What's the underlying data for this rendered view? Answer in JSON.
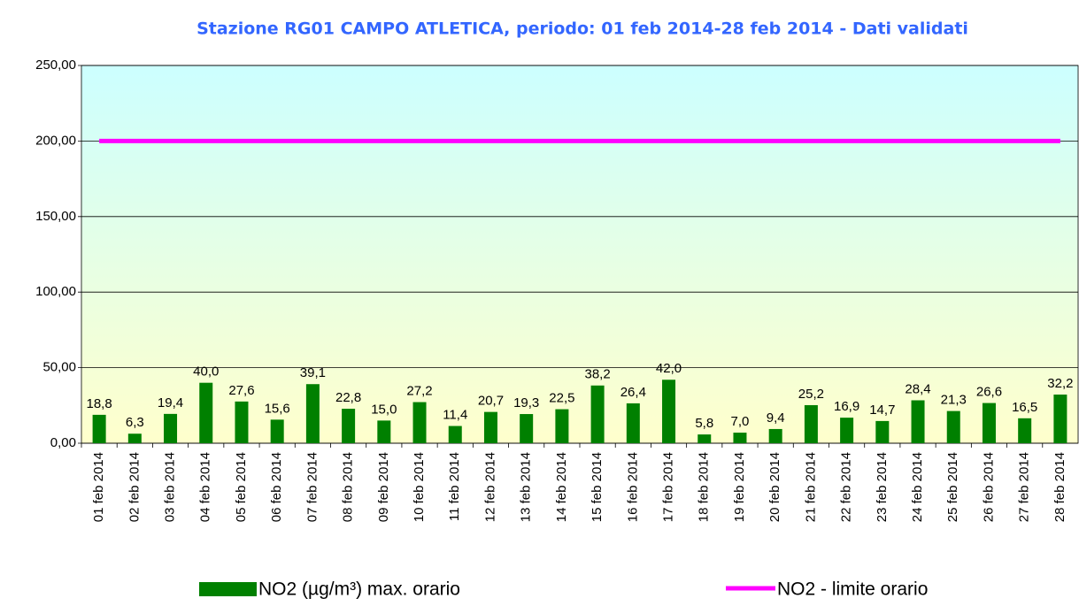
{
  "chart_data": {
    "type": "bar",
    "title": "Stazione RG01 CAMPO ATLETICA, periodo: 01 feb 2014-28 feb 2014 - Dati validati",
    "categories": [
      "01 feb 2014",
      "02 feb 2014",
      "03 feb 2014",
      "04 feb 2014",
      "05 feb 2014",
      "06 feb 2014",
      "07 feb 2014",
      "08 feb 2014",
      "09 feb 2014",
      "10 feb 2014",
      "11 feb 2014",
      "12 feb 2014",
      "13 feb 2014",
      "14 feb 2014",
      "15 feb 2014",
      "16 feb 2014",
      "17 feb 2014",
      "18 feb 2014",
      "19 feb 2014",
      "20 feb 2014",
      "21 feb 2014",
      "22 feb 2014",
      "23 feb 2014",
      "24 feb 2014",
      "25 feb 2014",
      "26 feb 2014",
      "27 feb 2014",
      "28 feb 2014"
    ],
    "series": [
      {
        "name": "NO2 (µg/m³) max. orario",
        "color": "#008000",
        "type": "bar",
        "values": [
          18.8,
          6.3,
          19.4,
          40.0,
          27.6,
          15.6,
          39.1,
          22.8,
          15.0,
          27.2,
          11.4,
          20.7,
          19.3,
          22.5,
          38.2,
          26.4,
          42.0,
          5.8,
          7.0,
          9.4,
          25.2,
          16.9,
          14.7,
          28.4,
          21.3,
          26.6,
          16.5,
          32.2
        ],
        "value_labels": [
          "18,8",
          "6,3",
          "19,4",
          "40,0",
          "27,6",
          "15,6",
          "39,1",
          "22,8",
          "15,0",
          "27,2",
          "11,4",
          "20,7",
          "19,3",
          "22,5",
          "38,2",
          "26,4",
          "42,0",
          "5,8",
          "7,0",
          "9,4",
          "25,2",
          "16,9",
          "14,7",
          "28,4",
          "21,3",
          "26,6",
          "16,5",
          "32,2"
        ]
      },
      {
        "name": "NO2 - limite orario",
        "color": "#ff00ff",
        "type": "line",
        "values": [
          200,
          200,
          200,
          200,
          200,
          200,
          200,
          200,
          200,
          200,
          200,
          200,
          200,
          200,
          200,
          200,
          200,
          200,
          200,
          200,
          200,
          200,
          200,
          200,
          200,
          200,
          200,
          200
        ]
      }
    ],
    "ylim": [
      0,
      250
    ],
    "yticks": [
      {
        "value": 0,
        "label": "0,00"
      },
      {
        "value": 50,
        "label": "50,00"
      },
      {
        "value": 100,
        "label": "100,00"
      },
      {
        "value": 150,
        "label": "150,00"
      },
      {
        "value": 200,
        "label": "200,00"
      },
      {
        "value": 250,
        "label": "250,00"
      }
    ],
    "grid": true
  }
}
